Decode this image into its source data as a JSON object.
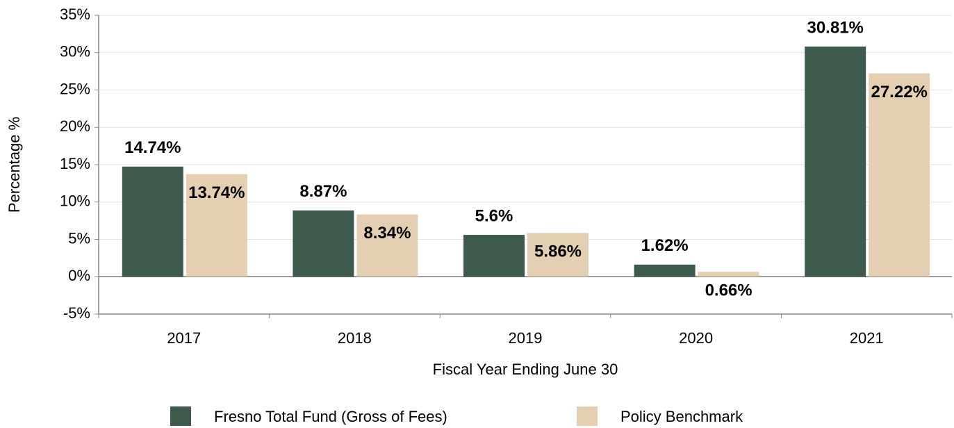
{
  "chart_data": {
    "type": "bar",
    "x_label": "Fiscal Year Ending June 30",
    "y_label": "Percentage %",
    "categories": [
      "2017",
      "2018",
      "2019",
      "2020",
      "2021"
    ],
    "series": [
      {
        "name": "Fresno Total Fund (Gross of Fees)",
        "color": "#3d5a4c",
        "values": [
          14.74,
          8.87,
          5.6,
          1.62,
          30.81
        ],
        "value_labels": [
          "14.74%",
          "8.87%",
          "5.6%",
          "1.62%",
          "30.81%"
        ]
      },
      {
        "name": "Policy Benchmark",
        "color": "#e5cfb3",
        "values": [
          13.74,
          8.34,
          5.86,
          0.66,
          27.22
        ],
        "value_labels": [
          "13.74%",
          "8.34%",
          "5.86%",
          "0.66%",
          "27.22%"
        ]
      }
    ],
    "ylim": [
      -5,
      35
    ],
    "yticks": [
      {
        "value": -5,
        "label": "-5%"
      },
      {
        "value": 0,
        "label": "0%"
      },
      {
        "value": 5,
        "label": "5%"
      },
      {
        "value": 10,
        "label": "10%"
      },
      {
        "value": 15,
        "label": "15%"
      },
      {
        "value": 20,
        "label": "20%"
      },
      {
        "value": 25,
        "label": "25%"
      },
      {
        "value": 30,
        "label": "30%"
      },
      {
        "value": 35,
        "label": "35%"
      }
    ],
    "grid": true,
    "legend": "bottom"
  }
}
